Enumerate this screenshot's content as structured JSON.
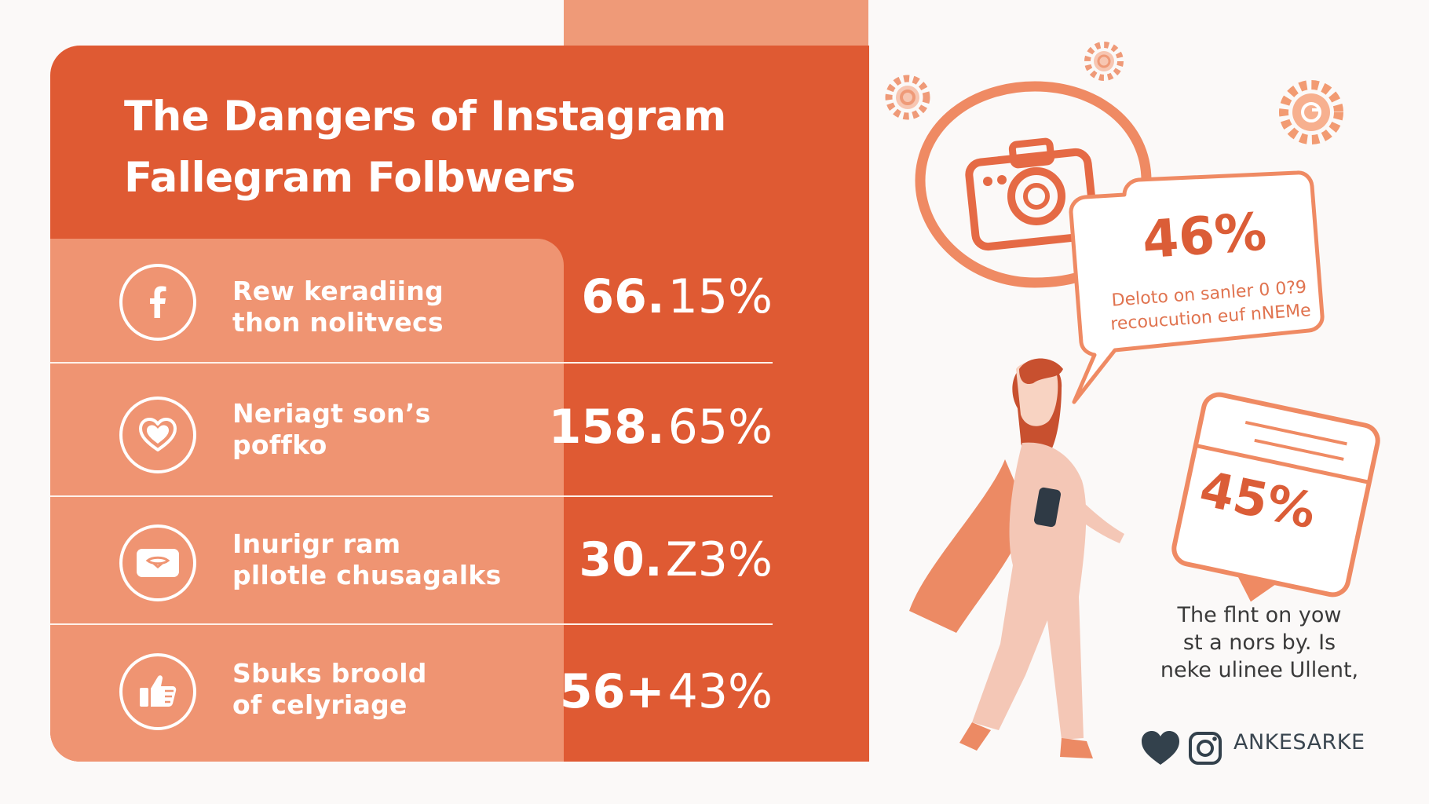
{
  "header": {
    "title_line1": "The Dangers of Instagram",
    "title_line2": "Fallegram Folbwers"
  },
  "rows": [
    {
      "icon": "facebook-icon",
      "label_line1": "Rew keradiing",
      "label_line2": "thon nolitvecs",
      "value_bold": "66.",
      "value_light": "15%"
    },
    {
      "icon": "heart-icon",
      "label_line1": "Neriagt son’s",
      "label_line2": "poffko",
      "value_bold": "158.",
      "value_light": "65%"
    },
    {
      "icon": "message-icon",
      "label_line1": "Inurigr ram",
      "label_line2": "pllotle chusagalks",
      "value_bold": "30.",
      "value_light": "Z3%"
    },
    {
      "icon": "thumbs-up-icon",
      "label_line1": "Sbuks broold",
      "label_line2": "of celyriage",
      "value_bold": "56+",
      "value_light": "43%"
    }
  ],
  "illustration": {
    "stat_camera": "46%",
    "camera_caption_line1": "Deloto on sanler 0 0?9",
    "camera_caption_line2": "recoucution euf nNEMe",
    "stat_card": "45%",
    "caption_line1": "The flnt on yow",
    "caption_line2": "st a nors by. Is",
    "caption_line3": "neke ulinee Ullent,",
    "brand": "ANKESARKE"
  },
  "colors": {
    "panel": "#df5a33",
    "panel_light": "#ef9472",
    "accent": "#ef9a78",
    "text_dark": "#3a3a3a"
  }
}
